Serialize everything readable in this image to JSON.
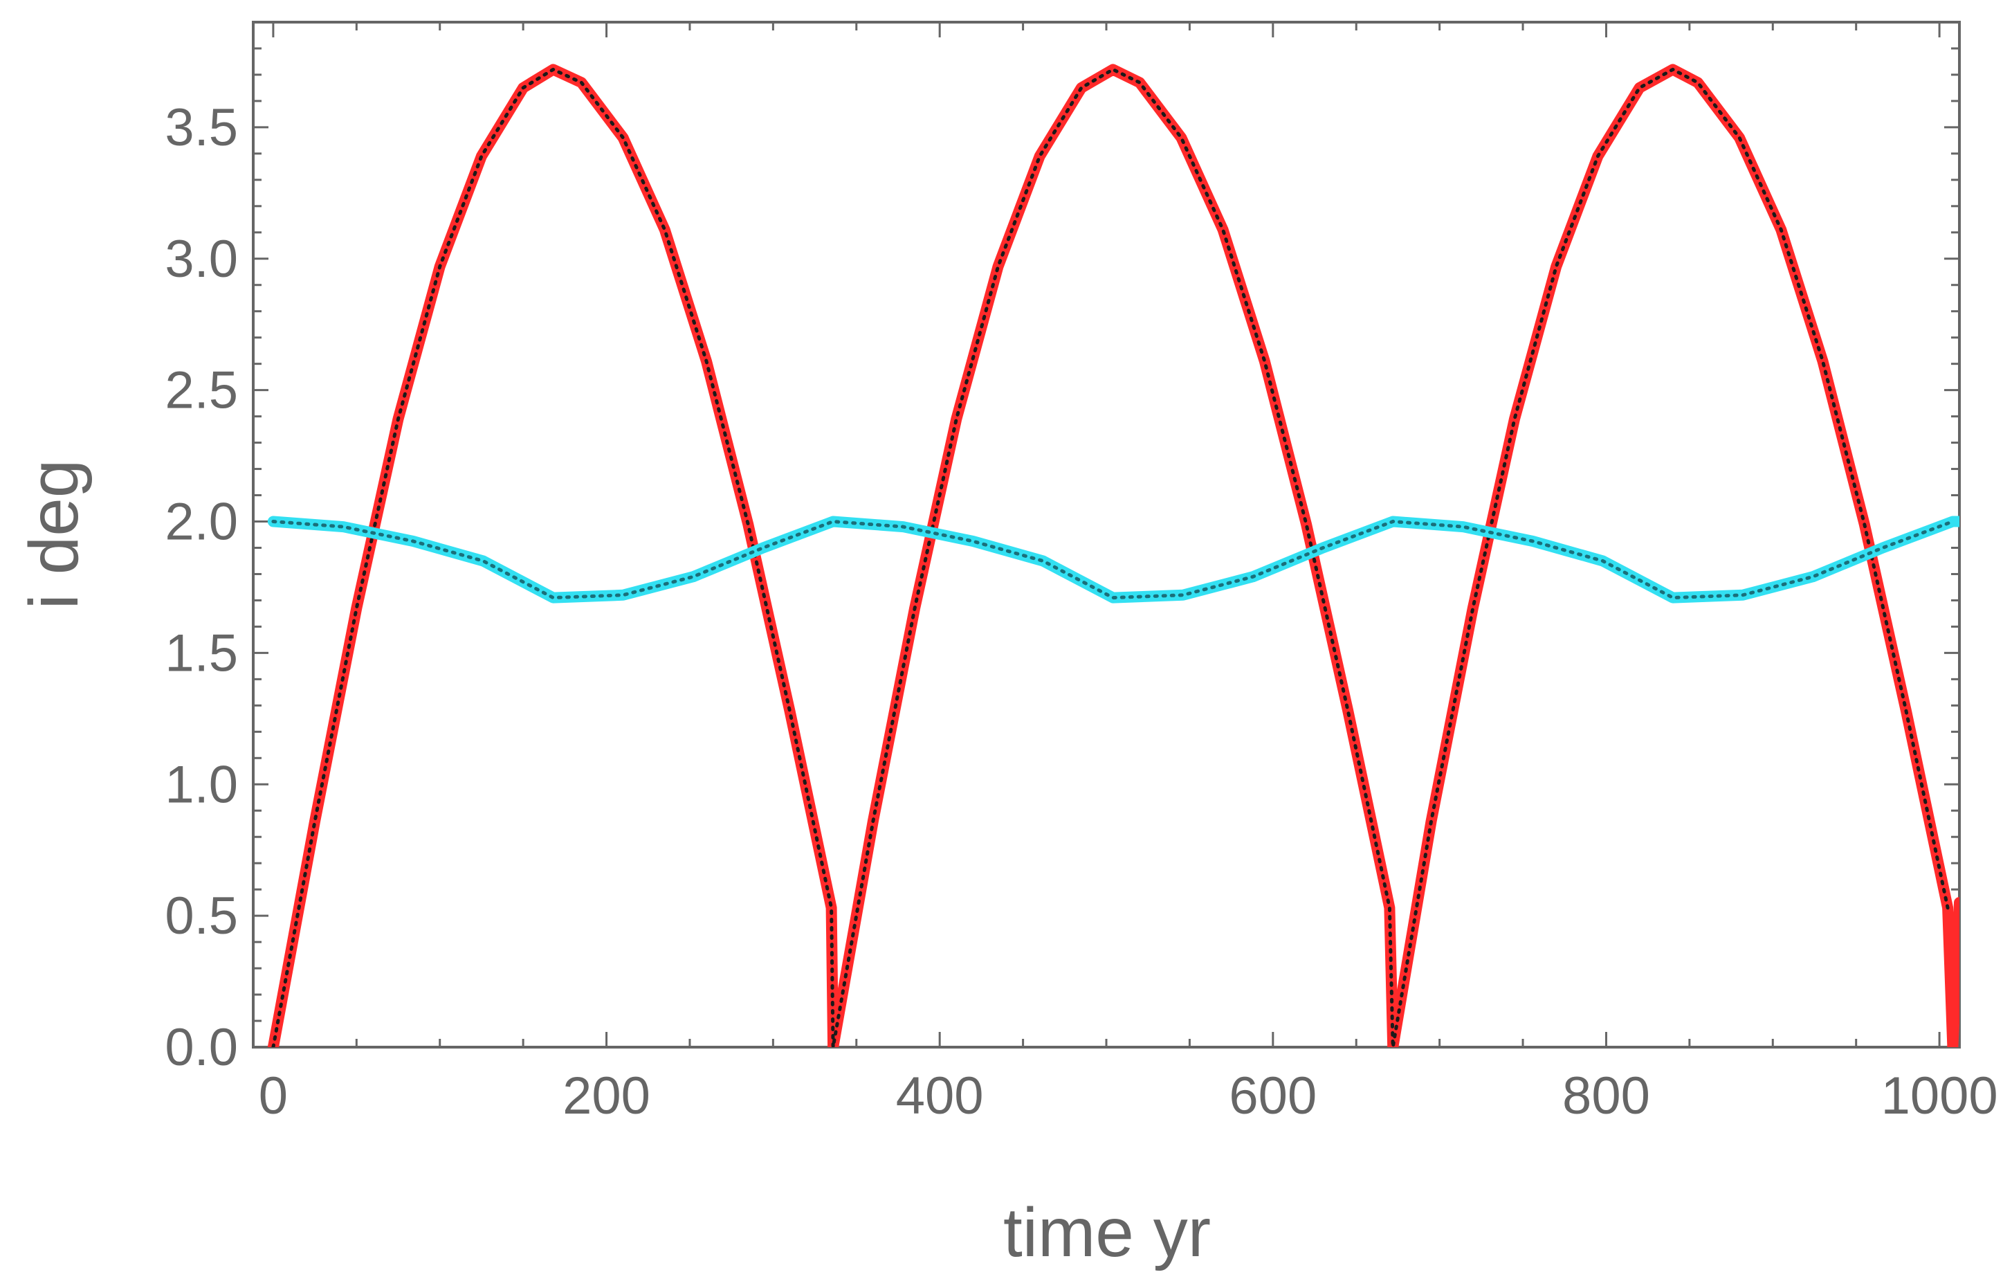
{
  "chart_data": {
    "type": "line",
    "title": "",
    "xlabel": "time  yr",
    "ylabel": "i deg",
    "xlim": [
      -12,
      1012
    ],
    "ylim": [
      0.0,
      3.9
    ],
    "x_ticks": [
      0,
      200,
      400,
      600,
      800,
      1000
    ],
    "x_tick_labels": [
      "0",
      "200",
      "400",
      "600",
      "800",
      "1000"
    ],
    "y_ticks": [
      0.0,
      0.5,
      1.0,
      1.5,
      2.0,
      2.5,
      3.0,
      3.5
    ],
    "y_tick_labels": [
      "0.0",
      "0.5",
      "1.0",
      "1.5",
      "2.0",
      "2.5",
      "3.0",
      "3.5"
    ],
    "grid": false,
    "series": [
      {
        "color": "#ff2a2a",
        "style": "solid-thick",
        "x": [
          0,
          25,
          50,
          75,
          100,
          125,
          150,
          168,
          185,
          210,
          235,
          260,
          285,
          310,
          335,
          336,
          360,
          385,
          410,
          435,
          460,
          485,
          504,
          520,
          545,
          570,
          595,
          620,
          645,
          670,
          672,
          695,
          720,
          745,
          770,
          795,
          820,
          840,
          855,
          880,
          905,
          930,
          955,
          980,
          1005,
          1008,
          1012
        ],
        "y": [
          0.0,
          0.86,
          1.67,
          2.39,
          2.97,
          3.39,
          3.65,
          3.72,
          3.67,
          3.46,
          3.11,
          2.61,
          1.99,
          1.28,
          0.53,
          0.0,
          0.86,
          1.67,
          2.39,
          2.97,
          3.39,
          3.65,
          3.72,
          3.67,
          3.46,
          3.11,
          2.61,
          1.99,
          1.28,
          0.53,
          0.0,
          0.86,
          1.67,
          2.39,
          2.97,
          3.39,
          3.65,
          3.72,
          3.67,
          3.46,
          3.11,
          2.61,
          1.99,
          1.28,
          0.53,
          0.0,
          0.55
        ]
      },
      {
        "color": "#1a1a1a",
        "style": "dotted",
        "x": [
          0,
          25,
          50,
          75,
          100,
          125,
          150,
          168,
          185,
          210,
          235,
          260,
          285,
          310,
          335,
          336,
          360,
          385,
          410,
          435,
          460,
          485,
          504,
          520,
          545,
          570,
          595,
          620,
          645,
          670,
          672,
          695,
          720,
          745,
          770,
          795,
          820,
          840,
          855,
          880,
          905,
          930,
          955,
          980,
          1005
        ],
        "y": [
          0.0,
          0.86,
          1.67,
          2.39,
          2.97,
          3.39,
          3.65,
          3.72,
          3.67,
          3.46,
          3.11,
          2.61,
          1.99,
          1.28,
          0.53,
          0.0,
          0.86,
          1.67,
          2.39,
          2.97,
          3.39,
          3.65,
          3.72,
          3.67,
          3.46,
          3.11,
          2.61,
          1.99,
          1.28,
          0.53,
          0.0,
          0.86,
          1.67,
          2.39,
          2.97,
          3.39,
          3.65,
          3.72,
          3.67,
          3.46,
          3.11,
          2.61,
          1.99,
          1.28,
          0.53
        ]
      },
      {
        "color": "#33e0f2",
        "style": "solid-thick",
        "x": [
          0,
          42,
          84,
          126,
          168,
          210,
          252,
          294,
          336,
          378,
          420,
          462,
          504,
          546,
          588,
          630,
          672,
          714,
          756,
          798,
          840,
          882,
          924,
          966,
          1008,
          1012
        ],
        "y": [
          2.0,
          1.98,
          1.925,
          1.85,
          1.71,
          1.72,
          1.79,
          1.9,
          2.0,
          1.98,
          1.925,
          1.85,
          1.71,
          1.72,
          1.79,
          1.9,
          2.0,
          1.98,
          1.925,
          1.85,
          1.71,
          1.72,
          1.79,
          1.9,
          2.0,
          2.0
        ]
      },
      {
        "color": "#1a6f7a",
        "style": "dotted",
        "x": [
          0,
          42,
          84,
          126,
          168,
          210,
          252,
          294,
          336,
          378,
          420,
          462,
          504,
          546,
          588,
          630,
          672,
          714,
          756,
          798,
          840,
          882,
          924,
          966,
          1008
        ],
        "y": [
          2.0,
          1.98,
          1.925,
          1.85,
          1.71,
          1.72,
          1.79,
          1.9,
          2.0,
          1.98,
          1.925,
          1.85,
          1.71,
          1.72,
          1.79,
          1.9,
          2.0,
          1.98,
          1.925,
          1.85,
          1.71,
          1.72,
          1.79,
          1.9,
          2.0
        ]
      }
    ]
  }
}
